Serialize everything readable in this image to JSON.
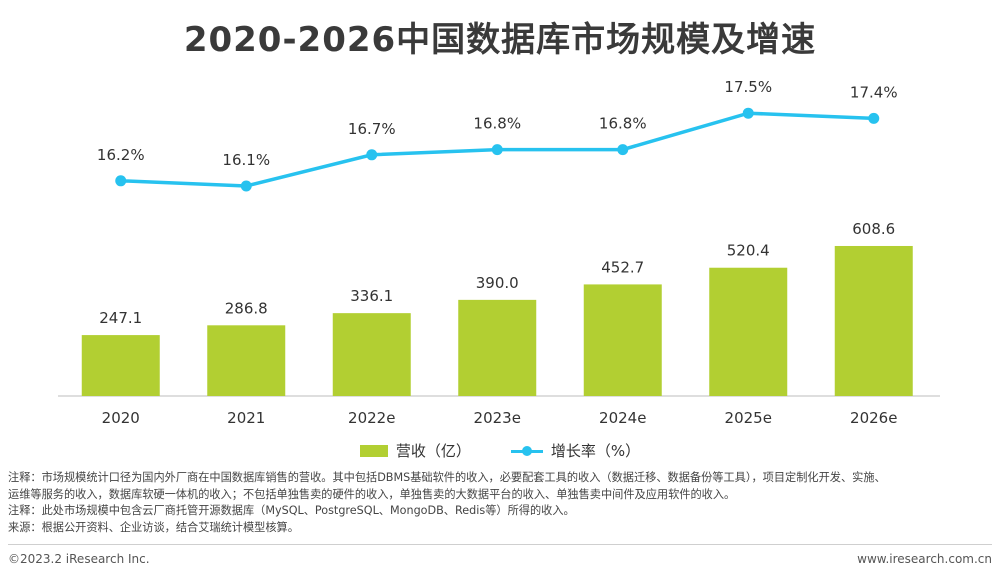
{
  "title": "2020-2026中国数据库市场规模及增速",
  "chart_data": {
    "type": "bar",
    "categories": [
      "2020",
      "2021",
      "2022e",
      "2023e",
      "2024e",
      "2025e",
      "2026e"
    ],
    "series": [
      {
        "name": "营收（亿）",
        "type": "bar",
        "values": [
          247.1,
          286.8,
          336.1,
          390.0,
          452.7,
          520.4,
          608.6
        ],
        "labels": [
          "247.1",
          "286.8",
          "336.1",
          "390.0",
          "452.7",
          "520.4",
          "608.6"
        ],
        "color": "#b2cf32"
      },
      {
        "name": "增长率（%）",
        "type": "line",
        "values": [
          16.2,
          16.1,
          16.7,
          16.8,
          16.8,
          17.5,
          17.4
        ],
        "labels": [
          "16.2%",
          "16.1%",
          "16.7%",
          "16.8%",
          "16.8%",
          "17.5%",
          "17.4%"
        ],
        "color": "#27c2ef"
      }
    ],
    "legend": "bottom"
  },
  "notes": [
    "注释：市场规模统计口径为国内外厂商在中国数据库销售的营收。其中包括DBMS基础软件的收入，必要配套工具的收入（数据迁移、数据备份等工具），项目定制化开发、实施、",
    "运维等服务的收入，数据库软硬一体机的收入；不包括单独售卖的硬件的收入，单独售卖的大数据平台的收入、单独售卖中间件及应用软件的收入。",
    "注释：此处市场规模中包含云厂商托管开源数据库（MySQL、PostgreSQL、MongoDB、Redis等）所得的收入。",
    "来源：根据公开资料、企业访谈，结合艾瑞统计模型核算。"
  ],
  "footer": {
    "copyright": "©2023.2 iResearch Inc.",
    "website": "www.iresearch.com.cn"
  }
}
